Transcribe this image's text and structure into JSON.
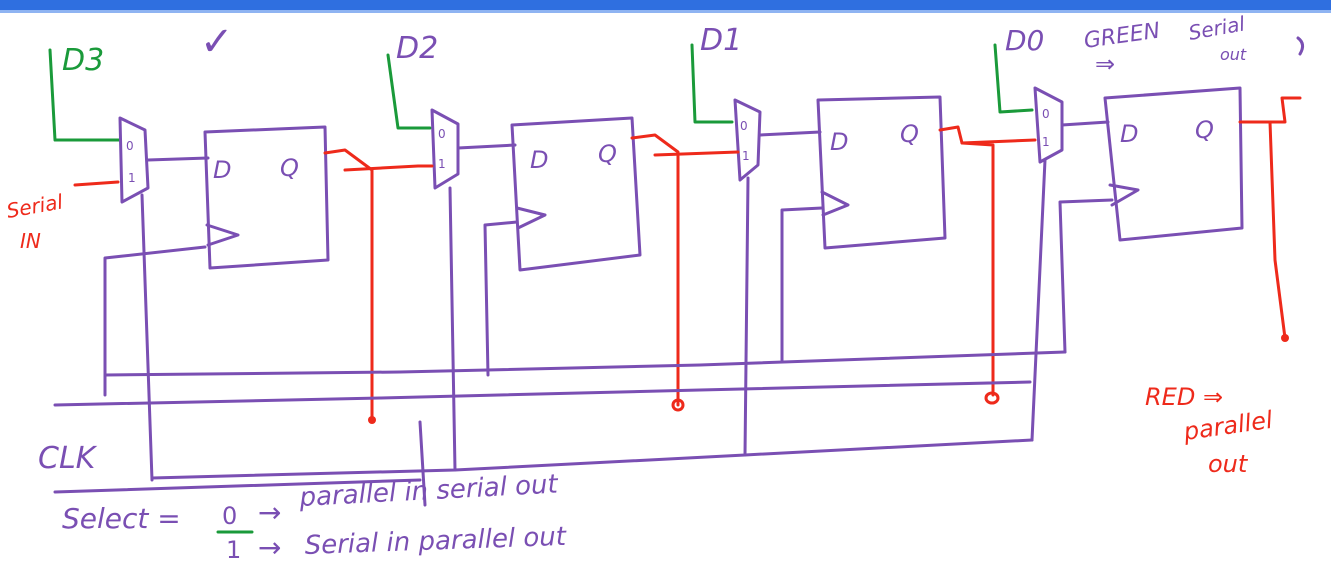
{
  "inputs": {
    "d3": "D3",
    "d2": "D2",
    "d1": "D1",
    "d0": "D0"
  },
  "checkmark": "✓",
  "green_note": {
    "color_word": "GREEN",
    "arrow": "⇒",
    "text_line1": "Serial",
    "text_line2": "out"
  },
  "serial_in": {
    "line1": "Serial",
    "line2": "IN"
  },
  "flipflop": {
    "d_label": "D",
    "q_label": "Q"
  },
  "mux": {
    "in0": "0",
    "in1": "1"
  },
  "clk_label": "CLK",
  "red_note": {
    "line1": "RED ⇒",
    "line2": "parallel",
    "line3": "out"
  },
  "select": {
    "label": "Select =",
    "opt0_value": "0",
    "opt0_arrow": "→",
    "opt0_text": "parallel in serial out",
    "opt1_value": "1",
    "opt1_arrow": "→",
    "opt1_text": "Serial in parallel out"
  },
  "colors": {
    "purple": "#7a4fb3",
    "red": "#ee2a1b",
    "green": "#1a9a3a",
    "blue_bar": "#2f6fe0"
  }
}
